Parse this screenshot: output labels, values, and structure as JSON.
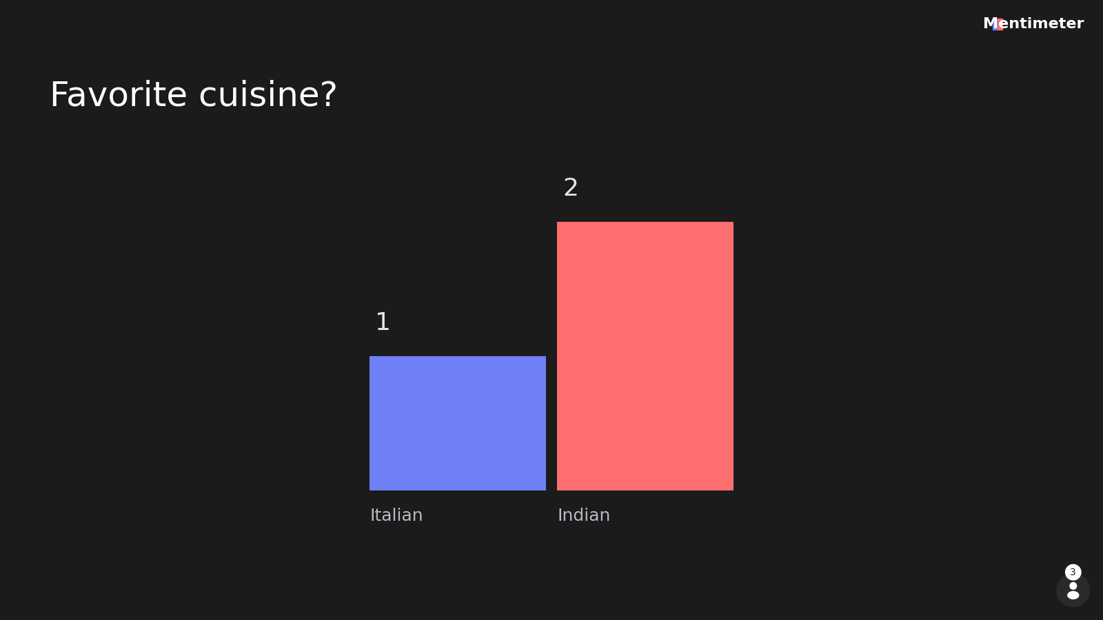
{
  "chart_data": {
    "type": "bar",
    "title": "Favorite cuisine?",
    "categories": [
      "Italian",
      "Indian"
    ],
    "values": [
      1,
      2
    ],
    "colors": [
      "#6f7ff5",
      "#ff6e6e"
    ],
    "data_labels": true,
    "tick_labels": "x",
    "grid": false
  },
  "brand": "Mentimeter",
  "participants": 3
}
